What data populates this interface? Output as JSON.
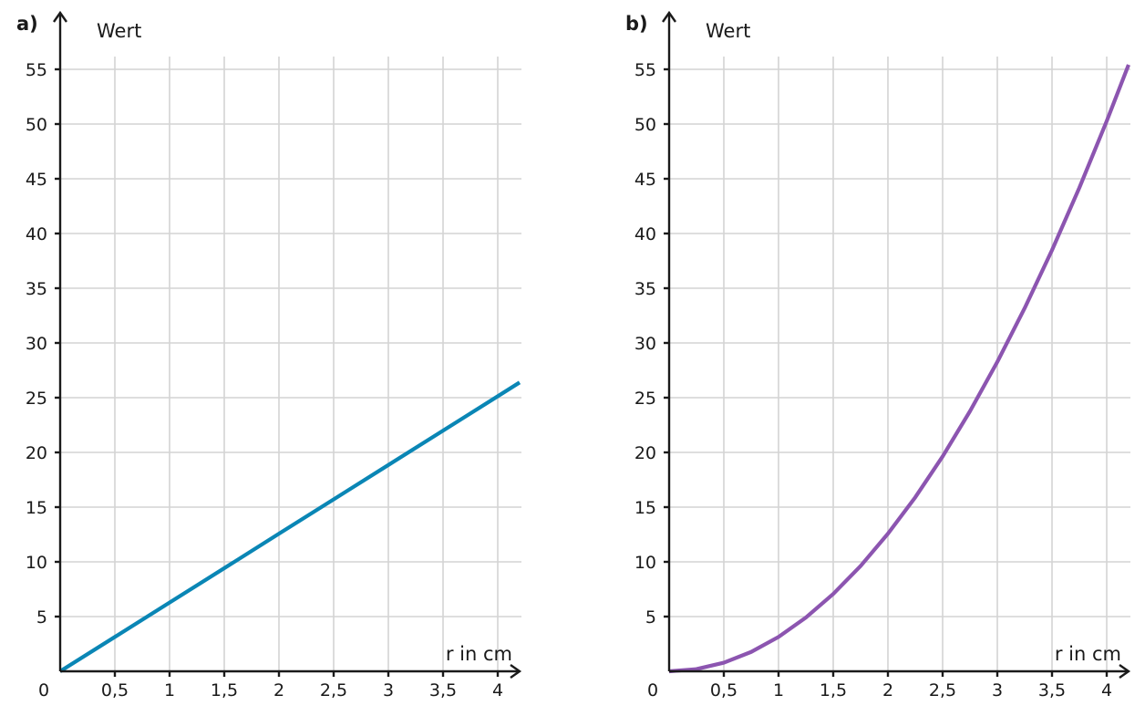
{
  "chart_data": [
    {
      "type": "line",
      "panel_label": "a)",
      "title": "",
      "xlabel": "r in cm",
      "ylabel": "Wert",
      "origin_label": "0",
      "xlim": [
        0,
        4.2
      ],
      "ylim": [
        0,
        55
      ],
      "x_ticks": [
        0.5,
        1,
        1.5,
        2,
        2.5,
        3,
        3.5,
        4
      ],
      "x_tick_labels": [
        "0,5",
        "1",
        "1,5",
        "2",
        "2,5",
        "3",
        "3,5",
        "4"
      ],
      "y_ticks": [
        5,
        10,
        15,
        20,
        25,
        30,
        35,
        40,
        45,
        50,
        55
      ],
      "y_tick_labels": [
        "5",
        "10",
        "15",
        "20",
        "25",
        "30",
        "35",
        "40",
        "45",
        "50",
        "55"
      ],
      "grid": true,
      "series": [
        {
          "color": "#0a86b5",
          "x": [
            0,
            0.5,
            1,
            1.5,
            2,
            2.5,
            3,
            3.5,
            4,
            4.2
          ],
          "y": [
            0,
            3.14,
            6.28,
            9.42,
            12.57,
            15.71,
            18.85,
            21.99,
            25.13,
            26.39
          ]
        }
      ]
    },
    {
      "type": "line",
      "panel_label": "b)",
      "title": "",
      "xlabel": "r in cm",
      "ylabel": "Wert",
      "origin_label": "0",
      "xlim": [
        0,
        4.2
      ],
      "ylim": [
        0,
        55
      ],
      "x_ticks": [
        0.5,
        1,
        1.5,
        2,
        2.5,
        3,
        3.5,
        4
      ],
      "x_tick_labels": [
        "0,5",
        "1",
        "1,5",
        "2",
        "2,5",
        "3",
        "3,5",
        "4"
      ],
      "y_ticks": [
        5,
        10,
        15,
        20,
        25,
        30,
        35,
        40,
        45,
        50,
        55
      ],
      "y_tick_labels": [
        "5",
        "10",
        "15",
        "20",
        "25",
        "30",
        "35",
        "40",
        "45",
        "50",
        "55"
      ],
      "grid": true,
      "series": [
        {
          "color": "#8c55b0",
          "x": [
            0,
            0.25,
            0.5,
            0.75,
            1,
            1.25,
            1.5,
            1.75,
            2,
            2.25,
            2.5,
            2.75,
            3,
            3.25,
            3.5,
            3.75,
            4,
            4.2
          ],
          "y": [
            0,
            0.2,
            0.79,
            1.77,
            3.14,
            4.91,
            7.07,
            9.62,
            12.57,
            15.9,
            19.63,
            23.76,
            28.27,
            33.18,
            38.48,
            44.18,
            50.27,
            55.42
          ]
        }
      ]
    }
  ]
}
